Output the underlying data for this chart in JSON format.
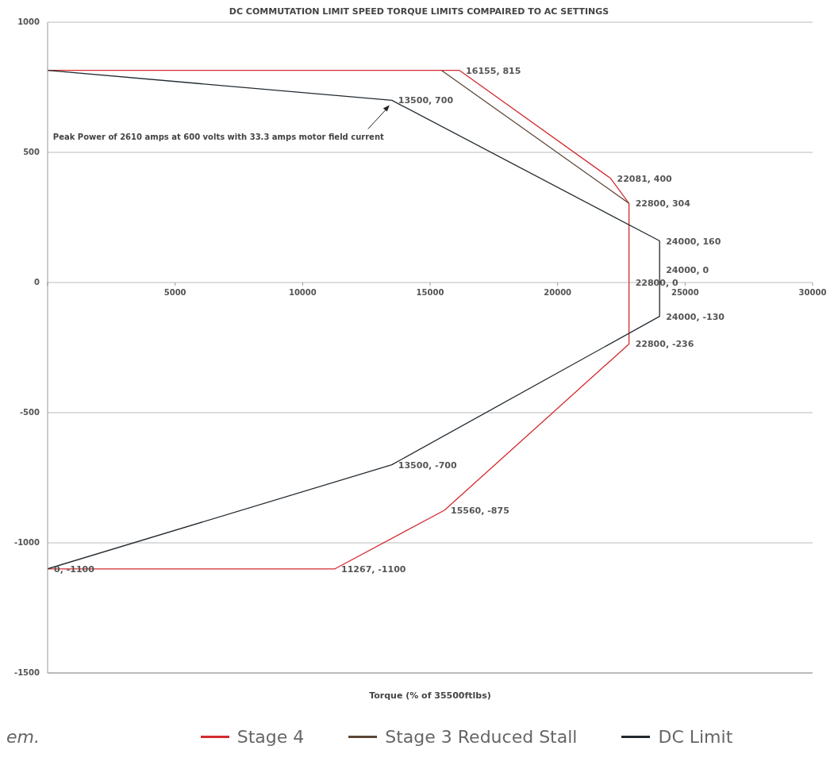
{
  "chart_data": {
    "type": "line",
    "title": "DC COMMUTATION LIMIT SPEED TORQUE LIMITS COMPAIRED TO AC SETTINGS",
    "xlabel": "Torque (% of 35500ftlbs)",
    "xlim": [
      0,
      30000
    ],
    "xticks": [
      {
        "value": 0,
        "label": null
      },
      5000,
      10000,
      15000,
      20000,
      25000,
      30000
    ],
    "ylim": [
      -1500,
      1000
    ],
    "yticks": [
      -1500,
      -1000,
      -500,
      0,
      500,
      1000
    ],
    "grid": "y",
    "legend": "bottom",
    "marker": "none",
    "line_style": "solid",
    "series": [
      {
        "name": "Stage 4",
        "color": "#d42a2f",
        "x": [
          0,
          16155,
          22081,
          22800,
          22800,
          22800,
          15560,
          11267,
          0
        ],
        "values": [
          815,
          815,
          400,
          304,
          0,
          -236,
          -875,
          -1100,
          -1100
        ],
        "value_labels": [
          null,
          "16155, 815",
          "22081, 400",
          "22800, 304",
          "22800, 0",
          "22800, -236",
          "15560, -875",
          "11267, -1100",
          null
        ]
      },
      {
        "name": "Stage 3 Reduced Stall",
        "color": "#5b4636",
        "x": [
          15450,
          22800
        ],
        "values": [
          815,
          304
        ]
      },
      {
        "name": "DC Limit",
        "color": "#222a30",
        "x": [
          0,
          13500,
          24000,
          24000,
          24000,
          13500,
          0
        ],
        "values": [
          815,
          700,
          160,
          0,
          -130,
          -700,
          -1100
        ],
        "value_labels": [
          null,
          "13500, 700",
          "24000, 160",
          "24000, 0",
          "24000, -130",
          "13500, -700",
          "0, -1100"
        ]
      }
    ],
    "annotations": [
      {
        "text": "Peak Power of 2610 amps at 600 volts with 33.3 amps motor field current",
        "x": 13500,
        "y": 700
      },
      "em."
    ]
  }
}
